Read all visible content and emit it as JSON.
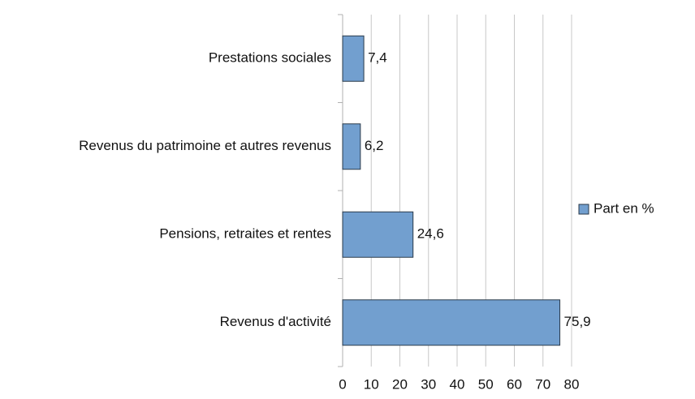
{
  "chart_data": {
    "type": "bar",
    "orientation": "horizontal",
    "categories": [
      "Prestations sociales",
      "Revenus du patrimoine et autres revenus",
      "Pensions, retraites et rentes",
      "Revenus d'activité"
    ],
    "series": [
      {
        "name": "Part en %",
        "color": "#729fcf",
        "values": [
          7.4,
          6.2,
          24.6,
          75.9
        ],
        "value_labels": [
          "7,4",
          "6,2",
          "24,6",
          "75,9"
        ]
      }
    ],
    "xlim": [
      0,
      80
    ],
    "xticks": [
      0,
      10,
      20,
      30,
      40,
      50,
      60,
      70,
      80
    ],
    "grid": true,
    "legend": "right"
  }
}
